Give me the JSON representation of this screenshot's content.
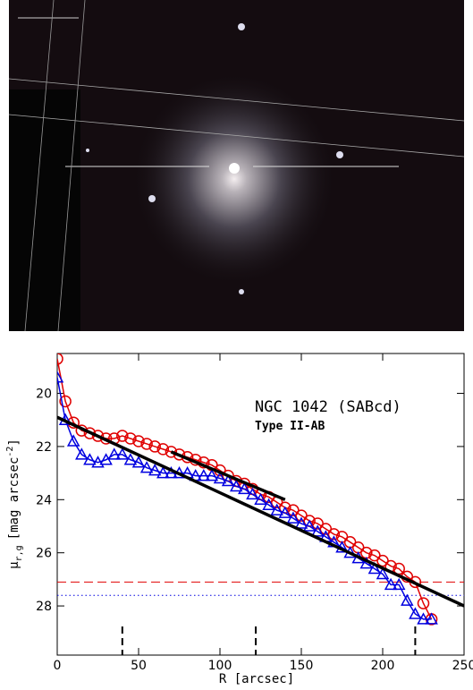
{
  "chart_data": {
    "type": "line",
    "title": "NGC 1042 (SABcd)",
    "subtitle": "Type II-AB",
    "xlabel": "R [arcsec]",
    "ylabel": {
      "symbol": "μ",
      "subscript": "r,g",
      "unit": "[mag arcsec",
      "exponent": "-2",
      "close": "]"
    },
    "xlim": [
      0,
      250
    ],
    "xticks": [
      0,
      50,
      100,
      150,
      200,
      250
    ],
    "ylim": [
      18.5,
      29.85
    ],
    "yticks": [
      20,
      22,
      24,
      26,
      28
    ],
    "y_inverted": true,
    "x": [
      0,
      5,
      10,
      15,
      20,
      25,
      30,
      35,
      40,
      45,
      50,
      55,
      60,
      65,
      70,
      75,
      80,
      85,
      90,
      95,
      100,
      105,
      110,
      115,
      120,
      125,
      130,
      135,
      140,
      145,
      150,
      155,
      160,
      165,
      170,
      175,
      180,
      185,
      190,
      195,
      200,
      205,
      210,
      215,
      220,
      225,
      230
    ],
    "series": [
      {
        "color": "#e00000",
        "marker": "circle",
        "values": [
          18.7,
          20.3,
          21.1,
          21.4,
          21.5,
          21.6,
          21.7,
          21.7,
          21.6,
          21.7,
          21.8,
          21.9,
          22.0,
          22.1,
          22.2,
          22.3,
          22.4,
          22.5,
          22.6,
          22.7,
          22.9,
          23.1,
          23.3,
          23.4,
          23.6,
          23.8,
          23.9,
          24.1,
          24.3,
          24.4,
          24.6,
          24.8,
          24.9,
          25.1,
          25.3,
          25.4,
          25.6,
          25.8,
          26.0,
          26.1,
          26.3,
          26.5,
          26.6,
          26.9,
          27.1,
          27.9,
          28.5
        ]
      },
      {
        "color": "#0000e0",
        "marker": "triangle",
        "values": [
          19.4,
          21.0,
          21.8,
          22.3,
          22.5,
          22.6,
          22.5,
          22.3,
          22.3,
          22.5,
          22.6,
          22.8,
          22.9,
          23.0,
          23.0,
          23.0,
          23.0,
          23.1,
          23.1,
          23.1,
          23.2,
          23.3,
          23.5,
          23.6,
          23.8,
          24.0,
          24.2,
          24.4,
          24.5,
          24.7,
          24.9,
          25.0,
          25.2,
          25.4,
          25.6,
          25.8,
          26.0,
          26.2,
          26.4,
          26.6,
          26.8,
          27.2,
          27.2,
          27.8,
          28.3,
          28.5,
          28.5
        ]
      }
    ],
    "fits": [
      {
        "x": [
          0,
          250
        ],
        "values": [
          20.9,
          28.0
        ]
      },
      {
        "x": [
          70,
          140
        ],
        "values": [
          22.2,
          24.0
        ]
      }
    ],
    "hlines": [
      {
        "value": 27.1,
        "color": "#e00000",
        "style": "dashed"
      },
      {
        "value": 27.6,
        "color": "#0000e0",
        "style": "dotted"
      }
    ],
    "breaks": [
      40,
      122,
      220
    ]
  }
}
